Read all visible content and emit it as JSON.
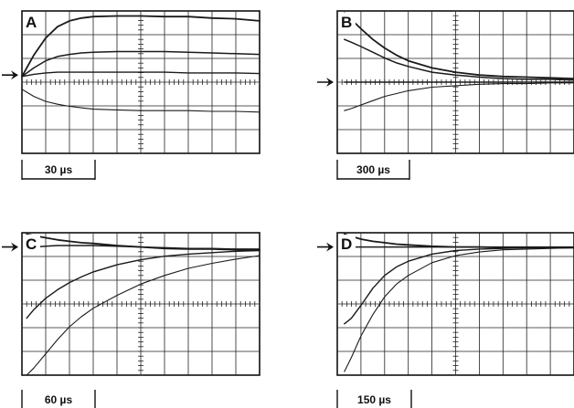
{
  "chart_data": [
    {
      "type": "line",
      "panel_label": "A",
      "timescale_label": "30 µs",
      "grid": true,
      "divisions": {
        "x": 10,
        "y": 6
      },
      "ylim": [
        -1,
        1
      ],
      "baseline_marker": "arrow",
      "baseline": 0.1,
      "x": [
        0,
        0.5,
        1,
        1.5,
        2,
        2.5,
        3,
        4,
        5,
        6,
        7,
        8,
        9,
        10
      ],
      "series": [
        {
          "values": [
            0.08,
            0.38,
            0.62,
            0.78,
            0.86,
            0.9,
            0.92,
            0.93,
            0.93,
            0.92,
            0.92,
            0.9,
            0.89,
            0.86
          ]
        },
        {
          "values": [
            0.08,
            0.2,
            0.3,
            0.36,
            0.39,
            0.41,
            0.42,
            0.43,
            0.43,
            0.43,
            0.42,
            0.41,
            0.4,
            0.39
          ]
        },
        {
          "values": [
            0.08,
            0.11,
            0.13,
            0.14,
            0.14,
            0.14,
            0.14,
            0.14,
            0.14,
            0.14,
            0.13,
            0.13,
            0.13,
            0.12
          ]
        },
        {
          "values": [
            -0.1,
            -0.2,
            -0.27,
            -0.31,
            -0.34,
            -0.36,
            -0.38,
            -0.39,
            -0.4,
            -0.4,
            -0.4,
            -0.41,
            -0.41,
            -0.42
          ]
        }
      ]
    },
    {
      "type": "line",
      "panel_label": "B",
      "timescale_label": "300 µs",
      "grid": true,
      "divisions": {
        "x": 10,
        "y": 6
      },
      "ylim": [
        -1,
        1
      ],
      "baseline_marker": "arrow",
      "baseline": 0.0,
      "x": [
        0.3,
        0.6,
        1,
        1.5,
        2,
        2.5,
        3,
        4,
        5,
        6,
        7,
        8,
        9,
        10
      ],
      "series": [
        {
          "values": [
            0.97,
            0.88,
            0.75,
            0.6,
            0.48,
            0.38,
            0.3,
            0.2,
            0.14,
            0.1,
            0.08,
            0.07,
            0.06,
            0.05
          ]
        },
        {
          "values": [
            0.6,
            0.56,
            0.5,
            0.42,
            0.34,
            0.27,
            0.22,
            0.14,
            0.1,
            0.07,
            0.05,
            0.04,
            0.04,
            0.03
          ]
        },
        {
          "values": [
            0.0,
            0.0,
            0.0,
            0.0,
            0.0,
            0.0,
            0.0,
            0.0,
            0.0,
            0.0,
            0.0,
            0.0,
            0.0,
            0.0
          ]
        },
        {
          "values": [
            -0.4,
            -0.37,
            -0.32,
            -0.26,
            -0.2,
            -0.16,
            -0.12,
            -0.07,
            -0.05,
            -0.03,
            -0.02,
            -0.02,
            -0.01,
            -0.01
          ]
        }
      ]
    },
    {
      "type": "line",
      "panel_label": "C",
      "timescale_label": "60 µs",
      "grid": true,
      "divisions": {
        "x": 10,
        "y": 6
      },
      "ylim": [
        -1,
        1
      ],
      "baseline_marker": "arrow",
      "baseline": 0.8,
      "x": [
        0.2,
        0.5,
        1,
        1.5,
        2,
        2.5,
        3,
        4,
        5,
        6,
        7,
        8,
        9,
        10
      ],
      "series": [
        {
          "values": [
            0.98,
            0.96,
            0.93,
            0.9,
            0.88,
            0.86,
            0.85,
            0.82,
            0.8,
            0.78,
            0.77,
            0.77,
            0.76,
            0.76
          ]
        },
        {
          "values": [
            0.79,
            0.8,
            0.81,
            0.82,
            0.82,
            0.82,
            0.82,
            0.81,
            0.8,
            0.79,
            0.78,
            0.78,
            0.77,
            0.77
          ]
        },
        {
          "values": [
            -0.2,
            -0.08,
            0.08,
            0.2,
            0.3,
            0.38,
            0.45,
            0.55,
            0.62,
            0.67,
            0.7,
            0.72,
            0.74,
            0.75
          ]
        },
        {
          "values": [
            -1.0,
            -0.9,
            -0.7,
            -0.5,
            -0.32,
            -0.18,
            -0.06,
            0.12,
            0.28,
            0.4,
            0.5,
            0.57,
            0.63,
            0.68
          ]
        }
      ]
    },
    {
      "type": "line",
      "panel_label": "D",
      "timescale_label": "150 µs",
      "grid": true,
      "divisions": {
        "x": 10,
        "y": 6
      },
      "ylim": [
        -1,
        1
      ],
      "baseline_marker": "arrow",
      "baseline": 0.8,
      "x": [
        0.3,
        0.6,
        1,
        1.5,
        2,
        2.5,
        3,
        4,
        5,
        6,
        7,
        8,
        9,
        10
      ],
      "series": [
        {
          "values": [
            0.98,
            0.95,
            0.91,
            0.88,
            0.86,
            0.84,
            0.83,
            0.81,
            0.8,
            0.8,
            0.79,
            0.79,
            0.79,
            0.79
          ]
        },
        {
          "values": [
            0.8,
            0.8,
            0.8,
            0.8,
            0.8,
            0.8,
            0.8,
            0.8,
            0.8,
            0.8,
            0.8,
            0.8,
            0.8,
            0.8
          ]
        },
        {
          "values": [
            -0.28,
            -0.2,
            -0.02,
            0.22,
            0.4,
            0.52,
            0.6,
            0.7,
            0.75,
            0.77,
            0.78,
            0.79,
            0.79,
            0.79
          ]
        },
        {
          "values": [
            -0.95,
            -0.75,
            -0.45,
            -0.15,
            0.1,
            0.28,
            0.4,
            0.58,
            0.68,
            0.73,
            0.76,
            0.77,
            0.78,
            0.79
          ]
        }
      ]
    }
  ]
}
